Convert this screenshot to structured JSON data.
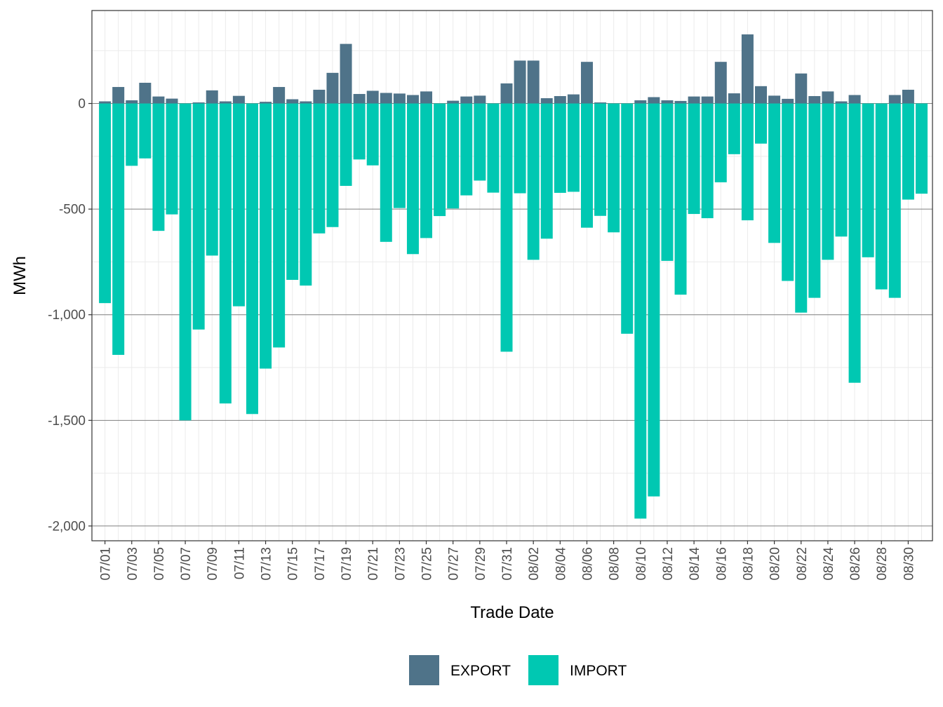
{
  "chart_data": {
    "type": "bar",
    "stacked": "diverging",
    "title": "",
    "xlabel": "Trade Date",
    "ylabel": "MWh",
    "ylim": [
      -2070,
      440
    ],
    "y_major_ticks": [
      0,
      -500,
      -1000,
      -1500,
      -2000
    ],
    "y_tick_labels": [
      "0",
      "-500",
      "-1,000",
      "-1,500",
      "-2,000"
    ],
    "y_minor_ticks": [
      250,
      -250,
      -750,
      -1250,
      -1750
    ],
    "categories": [
      "07/01",
      "07/02",
      "07/03",
      "07/04",
      "07/05",
      "07/06",
      "07/07",
      "07/08",
      "07/09",
      "07/10",
      "07/11",
      "07/12",
      "07/13",
      "07/14",
      "07/15",
      "07/16",
      "07/17",
      "07/18",
      "07/19",
      "07/20",
      "07/21",
      "07/22",
      "07/23",
      "07/24",
      "07/25",
      "07/26",
      "07/27",
      "07/28",
      "07/29",
      "07/30",
      "07/31",
      "08/01",
      "08/02",
      "08/03",
      "08/04",
      "08/05",
      "08/06",
      "08/07",
      "08/08",
      "08/09",
      "08/10",
      "08/11",
      "08/12",
      "08/13",
      "08/14",
      "08/15",
      "08/16",
      "08/17",
      "08/18",
      "08/19",
      "08/20",
      "08/21",
      "08/22",
      "08/23",
      "08/24",
      "08/25",
      "08/26",
      "08/27",
      "08/28",
      "08/29",
      "08/30",
      "08/31"
    ],
    "x_tick_labels": [
      "07/01",
      "07/03",
      "07/05",
      "07/07",
      "07/09",
      "07/11",
      "07/13",
      "07/15",
      "07/17",
      "07/19",
      "07/21",
      "07/23",
      "07/25",
      "07/27",
      "07/29",
      "07/31",
      "08/02",
      "08/04",
      "08/06",
      "08/08",
      "08/10",
      "08/12",
      "08/14",
      "08/16",
      "08/18",
      "08/20",
      "08/22",
      "08/24",
      "08/26",
      "08/28",
      "08/30"
    ],
    "series": [
      {
        "name": "EXPORT",
        "color": "#4f7389",
        "values": [
          10,
          78,
          15,
          98,
          33,
          23,
          0,
          5,
          62,
          10,
          36,
          0,
          8,
          78,
          20,
          10,
          65,
          145,
          282,
          45,
          60,
          50,
          47,
          40,
          57,
          0,
          13,
          33,
          37,
          0,
          95,
          203,
          203,
          25,
          35,
          43,
          197,
          5,
          0,
          0,
          15,
          30,
          15,
          12,
          33,
          33,
          197,
          48,
          327,
          82,
          37,
          22,
          142,
          35,
          57,
          10,
          40,
          0,
          0,
          40,
          65,
          0
        ]
      },
      {
        "name": "IMPORT",
        "color": "#00c8b2",
        "values": [
          -945,
          -1190,
          -295,
          -260,
          -603,
          -525,
          -1500,
          -1070,
          -720,
          -1420,
          -960,
          -1470,
          -1255,
          -1155,
          -835,
          -862,
          -615,
          -585,
          -390,
          -265,
          -293,
          -655,
          -495,
          -713,
          -637,
          -533,
          -497,
          -435,
          -365,
          -422,
          -1175,
          -425,
          -740,
          -640,
          -423,
          -418,
          -588,
          -532,
          -610,
          -1090,
          -1965,
          -1860,
          -745,
          -905,
          -523,
          -543,
          -373,
          -240,
          -553,
          -190,
          -660,
          -840,
          -990,
          -920,
          -740,
          -630,
          -1322,
          -728,
          -880,
          -920,
          -455,
          -427
        ]
      }
    ],
    "legend": {
      "position": "bottom",
      "entries": [
        "EXPORT",
        "IMPORT"
      ]
    }
  }
}
